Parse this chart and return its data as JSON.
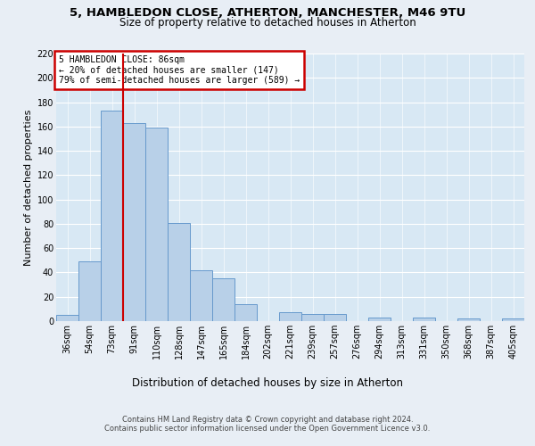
{
  "title1": "5, HAMBLEDON CLOSE, ATHERTON, MANCHESTER, M46 9TU",
  "title2": "Size of property relative to detached houses in Atherton",
  "xlabel": "Distribution of detached houses by size in Atherton",
  "ylabel": "Number of detached properties",
  "footer1": "Contains HM Land Registry data © Crown copyright and database right 2024.",
  "footer2": "Contains public sector information licensed under the Open Government Licence v3.0.",
  "annotation_line1": "5 HAMBLEDON CLOSE: 86sqm",
  "annotation_line2": "← 20% of detached houses are smaller (147)",
  "annotation_line3": "79% of semi-detached houses are larger (589) →",
  "bar_values": [
    5,
    49,
    173,
    163,
    159,
    81,
    42,
    35,
    14,
    0,
    7,
    6,
    6,
    0,
    3,
    0,
    3,
    0,
    2,
    0,
    2
  ],
  "categories": [
    "36sqm",
    "54sqm",
    "73sqm",
    "91sqm",
    "110sqm",
    "128sqm",
    "147sqm",
    "165sqm",
    "184sqm",
    "202sqm",
    "221sqm",
    "239sqm",
    "257sqm",
    "276sqm",
    "294sqm",
    "313sqm",
    "331sqm",
    "350sqm",
    "368sqm",
    "387sqm",
    "405sqm"
  ],
  "bar_color": "#b8d0e8",
  "bar_edge_color": "#6699cc",
  "vline_color": "#cc0000",
  "annotation_box_color": "#cc0000",
  "background_color": "#e8eef5",
  "plot_bg_color": "#d8e8f4",
  "ylim": [
    0,
    220
  ],
  "yticks": [
    0,
    20,
    40,
    60,
    80,
    100,
    120,
    140,
    160,
    180,
    200,
    220
  ],
  "title1_fontsize": 9.5,
  "title2_fontsize": 8.5,
  "ylabel_fontsize": 8,
  "xlabel_fontsize": 8.5,
  "footer_fontsize": 6,
  "tick_fontsize": 7,
  "annot_fontsize": 7
}
